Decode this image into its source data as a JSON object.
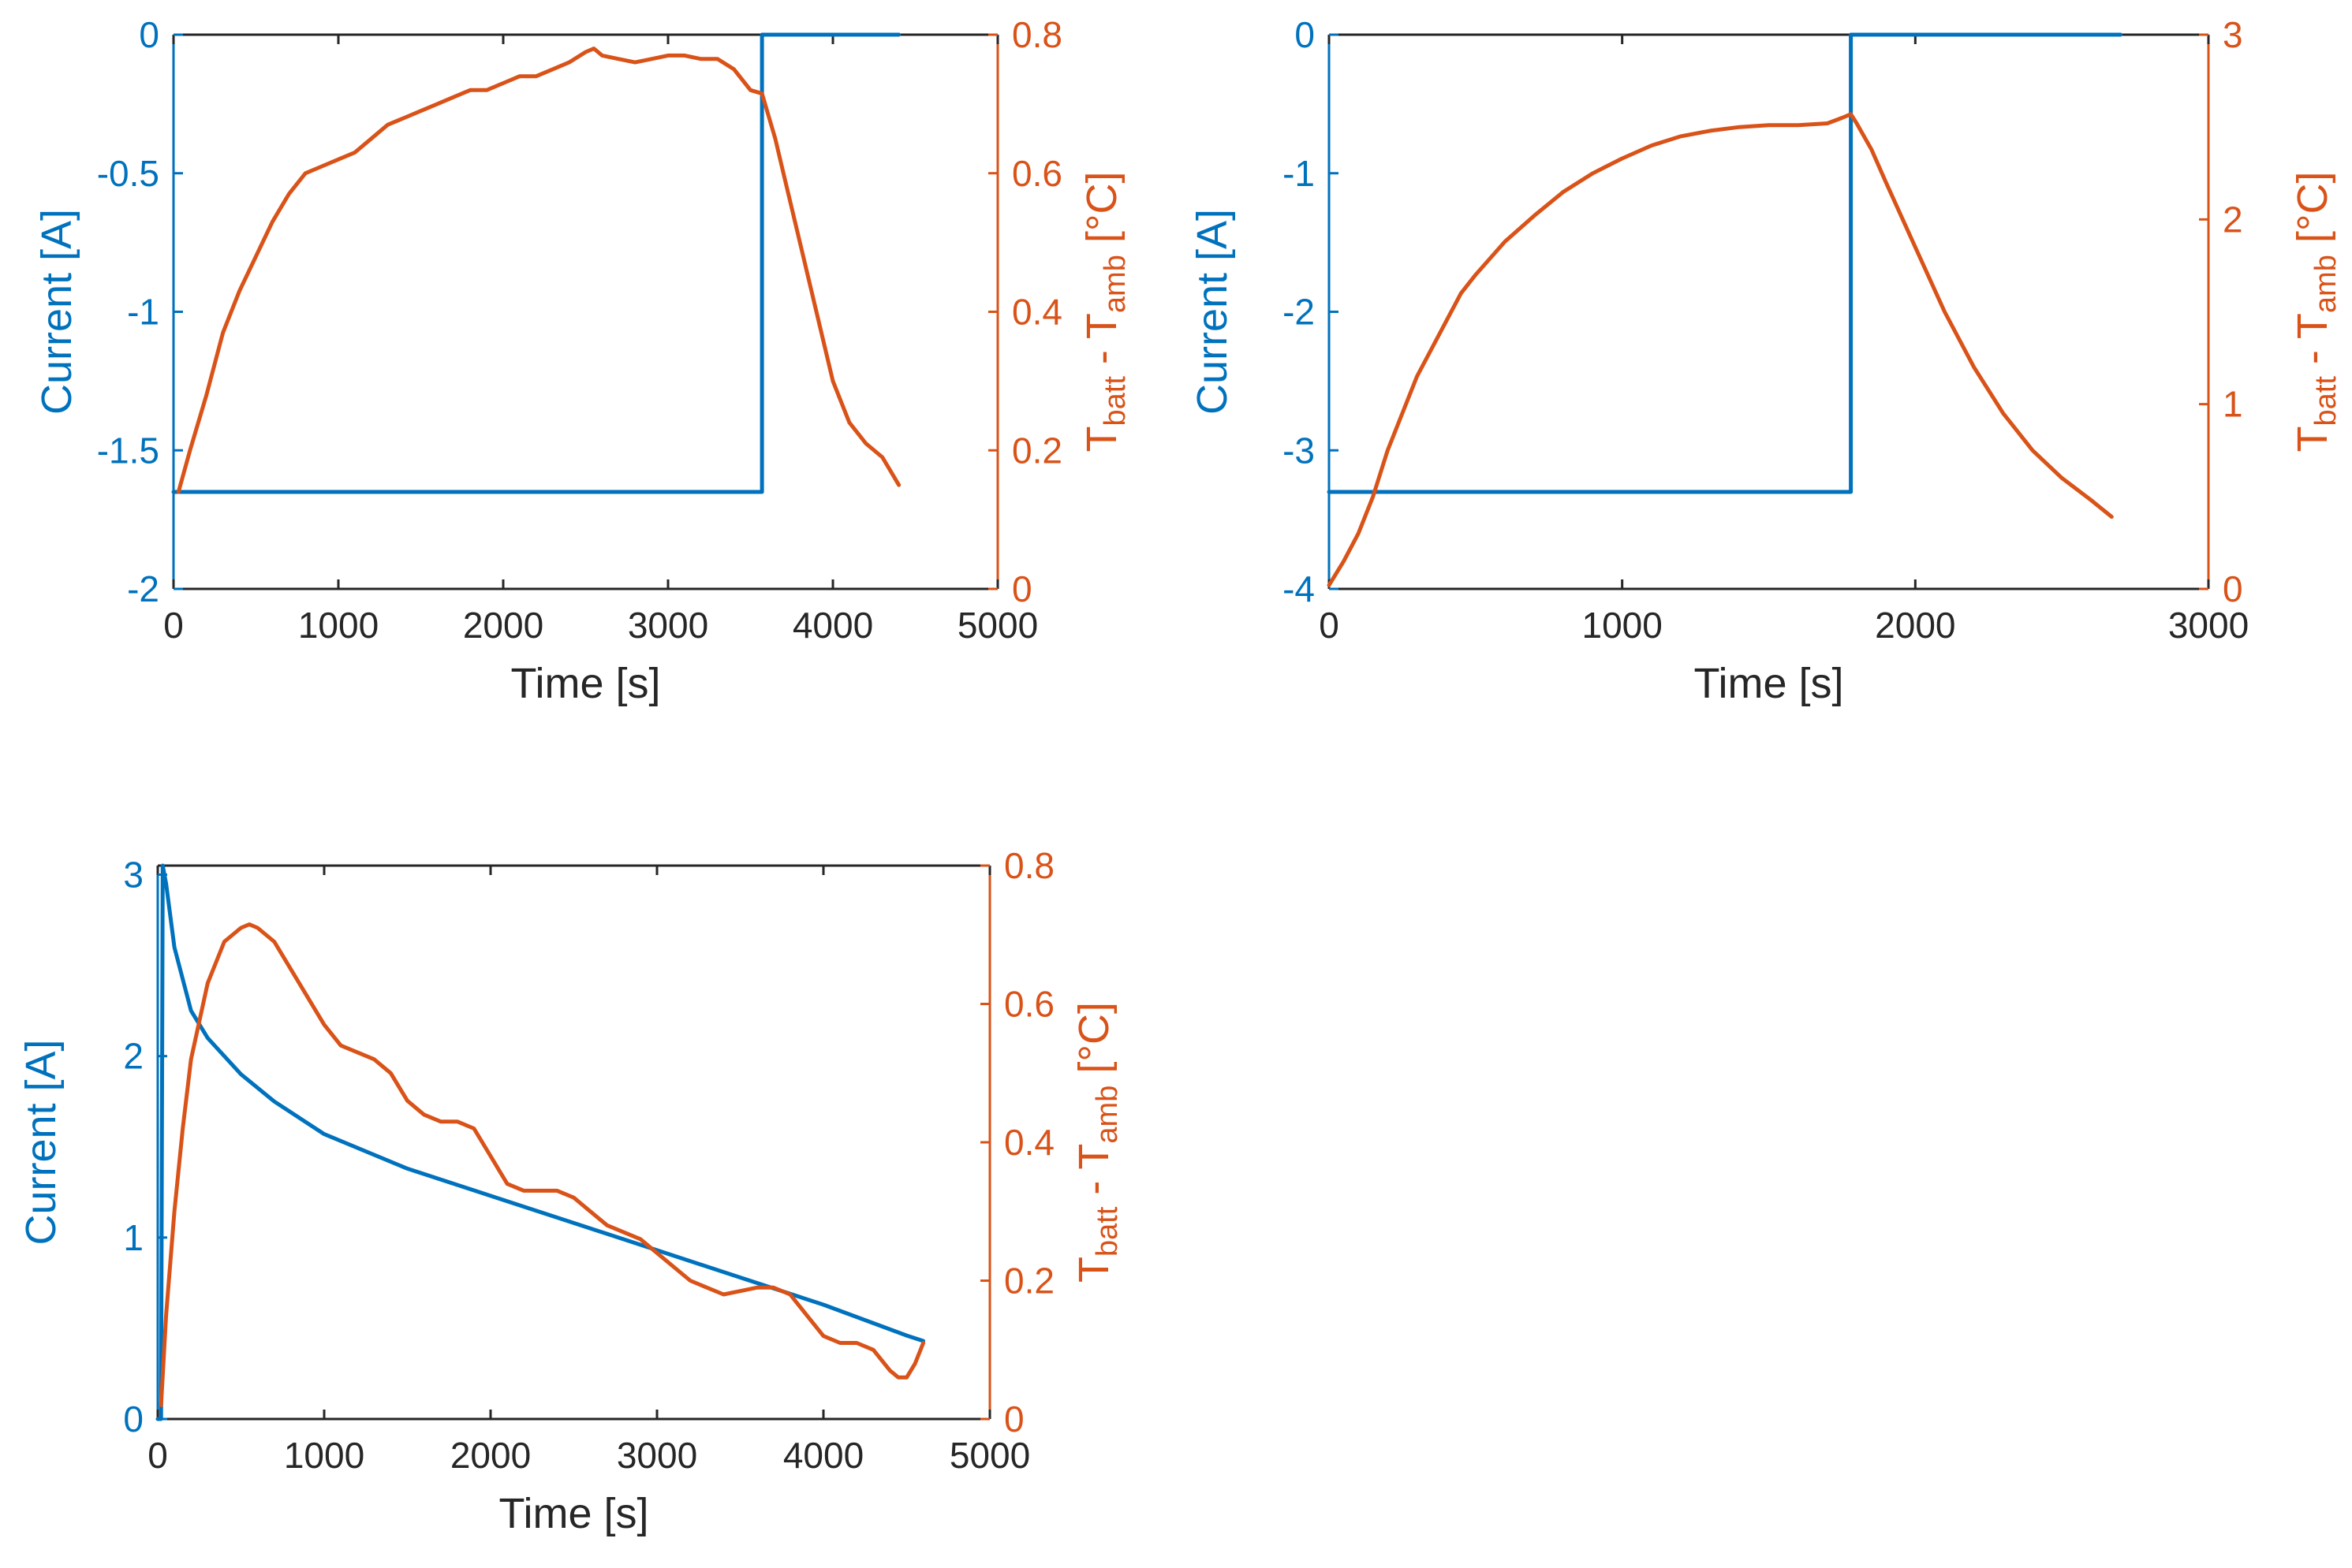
{
  "colors": {
    "current": "#0072BD",
    "temperature": "#D95319",
    "axes_box": "#262626",
    "text": "#262626"
  },
  "chart_data": [
    {
      "type": "line",
      "panel": "top-left",
      "xlabel": "Time [s]",
      "ylabel_left": "Current [A]",
      "ylabel_right": {
        "base": "T",
        "sub1": "batt",
        "mid": " - T",
        "sub2": "amb",
        "unit": " [°C]"
      },
      "xlim": [
        0,
        5000
      ],
      "xticks": [
        0,
        1000,
        2000,
        3000,
        4000,
        5000
      ],
      "xtick_labels": [
        "0",
        "1000",
        "2000",
        "3000",
        "4000",
        "5000"
      ],
      "ylim_left": [
        -2,
        0
      ],
      "yticks_left": [
        -2,
        -1.5,
        -1,
        -0.5,
        0
      ],
      "ytick_labels_left": [
        "-2",
        "-1.5",
        "-1",
        "-0.5",
        "0"
      ],
      "ylim_right": [
        0,
        0.8
      ],
      "yticks_right": [
        0,
        0.2,
        0.4,
        0.6,
        0.8
      ],
      "ytick_labels_right": [
        "0",
        "0.2",
        "0.4",
        "0.6",
        "0.8"
      ],
      "series": [
        {
          "name": "Current",
          "axis": "left",
          "x": [
            0,
            30,
            3570,
            3570,
            4400
          ],
          "y": [
            -1.65,
            -1.65,
            -1.65,
            0,
            0
          ]
        },
        {
          "name": "Temperature difference",
          "axis": "right",
          "x": [
            30,
            100,
            200,
            300,
            400,
            500,
            600,
            700,
            800,
            900,
            1000,
            1100,
            1200,
            1300,
            1400,
            1500,
            1600,
            1700,
            1800,
            1900,
            2000,
            2100,
            2200,
            2300,
            2400,
            2500,
            2550,
            2600,
            2700,
            2800,
            2900,
            3000,
            3100,
            3200,
            3300,
            3400,
            3500,
            3570,
            3650,
            3700,
            3800,
            3900,
            4000,
            4100,
            4200,
            4300,
            4350,
            4400
          ],
          "y": [
            0.14,
            0.2,
            0.28,
            0.37,
            0.43,
            0.48,
            0.53,
            0.57,
            0.6,
            0.61,
            0.62,
            0.63,
            0.65,
            0.67,
            0.68,
            0.69,
            0.7,
            0.71,
            0.72,
            0.72,
            0.73,
            0.74,
            0.74,
            0.75,
            0.76,
            0.775,
            0.78,
            0.77,
            0.765,
            0.76,
            0.765,
            0.77,
            0.77,
            0.765,
            0.765,
            0.75,
            0.72,
            0.715,
            0.65,
            0.6,
            0.5,
            0.4,
            0.3,
            0.24,
            0.21,
            0.19,
            0.17,
            0.15
          ]
        }
      ]
    },
    {
      "type": "line",
      "panel": "top-right",
      "xlabel": "Time [s]",
      "ylabel_left": "Current [A]",
      "ylabel_right": {
        "base": "T",
        "sub1": "batt",
        "mid": " - T",
        "sub2": "amb",
        "unit": " [°C]"
      },
      "xlim": [
        0,
        3000
      ],
      "xticks": [
        0,
        1000,
        2000,
        3000
      ],
      "xtick_labels": [
        "0",
        "1000",
        "2000",
        "3000"
      ],
      "ylim_left": [
        -4,
        0
      ],
      "yticks_left": [
        -4,
        -3,
        -2,
        -1,
        0
      ],
      "ytick_labels_left": [
        "-4",
        "-3",
        "-2",
        "-1",
        "0"
      ],
      "ylim_right": [
        0,
        3
      ],
      "yticks_right": [
        0,
        1,
        2,
        3
      ],
      "ytick_labels_right": [
        "0",
        "1",
        "2",
        "3"
      ],
      "series": [
        {
          "name": "Current",
          "axis": "left",
          "x": [
            0,
            1780,
            1780,
            2700
          ],
          "y": [
            -3.3,
            -3.3,
            0,
            0
          ]
        },
        {
          "name": "Temperature difference",
          "axis": "right",
          "x": [
            0,
            50,
            100,
            150,
            200,
            300,
            400,
            450,
            500,
            600,
            700,
            800,
            900,
            1000,
            1100,
            1200,
            1300,
            1400,
            1500,
            1600,
            1700,
            1750,
            1780,
            1800,
            1850,
            1900,
            2000,
            2100,
            2200,
            2300,
            2400,
            2500,
            2600,
            2670
          ],
          "y": [
            0.02,
            0.15,
            0.3,
            0.5,
            0.75,
            1.15,
            1.45,
            1.6,
            1.7,
            1.88,
            2.02,
            2.15,
            2.25,
            2.33,
            2.4,
            2.45,
            2.48,
            2.5,
            2.51,
            2.51,
            2.52,
            2.55,
            2.57,
            2.52,
            2.38,
            2.2,
            1.85,
            1.5,
            1.2,
            0.95,
            0.75,
            0.6,
            0.48,
            0.39
          ]
        }
      ]
    },
    {
      "type": "line",
      "panel": "bottom-left",
      "xlabel": "Time [s]",
      "ylabel_left": "Current [A]",
      "ylabel_right": {
        "base": "T",
        "sub1": "batt",
        "mid": " - T",
        "sub2": "amb",
        "unit": " [°C]"
      },
      "xlim": [
        0,
        5000
      ],
      "xticks": [
        0,
        1000,
        2000,
        3000,
        4000,
        5000
      ],
      "xtick_labels": [
        "0",
        "1000",
        "2000",
        "3000",
        "4000",
        "5000"
      ],
      "ylim_left": [
        0,
        3.05
      ],
      "yticks_left": [
        0,
        1,
        2,
        3
      ],
      "ytick_labels_left": [
        "0",
        "1",
        "2",
        "3"
      ],
      "ylim_right": [
        0,
        0.8
      ],
      "yticks_right": [
        0,
        0.2,
        0.4,
        0.6,
        0.8
      ],
      "ytick_labels_right": [
        "0",
        "0.2",
        "0.4",
        "0.6",
        "0.8"
      ],
      "series": [
        {
          "name": "Current",
          "axis": "left",
          "x": [
            0,
            20,
            30,
            50,
            100,
            200,
            300,
            500,
            700,
            1000,
            1500,
            2000,
            2500,
            3000,
            3500,
            4000,
            4500,
            4600
          ],
          "y": [
            0,
            0,
            3.05,
            2.95,
            2.6,
            2.25,
            2.1,
            1.9,
            1.75,
            1.57,
            1.38,
            1.23,
            1.08,
            0.93,
            0.78,
            0.63,
            0.46,
            0.43
          ]
        },
        {
          "name": "Temperature difference",
          "axis": "right",
          "x": [
            20,
            50,
            100,
            150,
            200,
            300,
            400,
            500,
            550,
            600,
            700,
            800,
            900,
            1000,
            1100,
            1200,
            1300,
            1400,
            1500,
            1600,
            1700,
            1800,
            1900,
            2000,
            2100,
            2200,
            2300,
            2400,
            2500,
            2600,
            2700,
            2800,
            2900,
            3000,
            3100,
            3200,
            3300,
            3400,
            3500,
            3600,
            3700,
            3800,
            3900,
            4000,
            4100,
            4200,
            4300,
            4400,
            4450,
            4500,
            4550,
            4600
          ],
          "y": [
            0.02,
            0.15,
            0.3,
            0.42,
            0.52,
            0.63,
            0.69,
            0.71,
            0.715,
            0.71,
            0.69,
            0.65,
            0.61,
            0.57,
            0.54,
            0.53,
            0.52,
            0.5,
            0.46,
            0.44,
            0.43,
            0.43,
            0.42,
            0.38,
            0.34,
            0.33,
            0.33,
            0.33,
            0.32,
            0.3,
            0.28,
            0.27,
            0.26,
            0.24,
            0.22,
            0.2,
            0.19,
            0.18,
            0.185,
            0.19,
            0.19,
            0.18,
            0.15,
            0.12,
            0.11,
            0.11,
            0.1,
            0.07,
            0.06,
            0.06,
            0.08,
            0.11
          ]
        }
      ]
    }
  ]
}
